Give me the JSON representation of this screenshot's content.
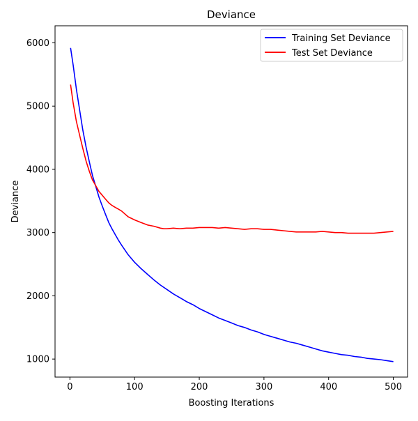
{
  "chart_data": {
    "type": "line",
    "title": "Deviance",
    "xlabel": "Boosting Iterations",
    "ylabel": "Deviance",
    "xlim": [
      -23,
      522
    ],
    "ylim": [
      715,
      6270
    ],
    "x_ticks": [
      0,
      100,
      200,
      300,
      400,
      500
    ],
    "y_ticks": [
      1000,
      2000,
      3000,
      4000,
      5000,
      6000
    ],
    "grid": false,
    "legend_position": "top-right",
    "series": [
      {
        "name": "Training Set Deviance",
        "color": "#0000ff",
        "x": [
          1,
          5,
          10,
          15,
          20,
          25,
          30,
          35,
          40,
          45,
          50,
          55,
          60,
          65,
          70,
          75,
          80,
          90,
          100,
          110,
          120,
          130,
          140,
          150,
          160,
          170,
          180,
          190,
          200,
          210,
          220,
          230,
          240,
          250,
          260,
          270,
          280,
          290,
          300,
          310,
          320,
          330,
          340,
          350,
          360,
          370,
          380,
          390,
          400,
          410,
          420,
          430,
          440,
          450,
          460,
          470,
          480,
          490,
          500
        ],
        "values": [
          5920,
          5650,
          5270,
          4940,
          4620,
          4350,
          4120,
          3900,
          3730,
          3560,
          3420,
          3290,
          3160,
          3060,
          2970,
          2880,
          2800,
          2650,
          2530,
          2430,
          2340,
          2250,
          2170,
          2100,
          2030,
          1970,
          1910,
          1860,
          1800,
          1750,
          1700,
          1650,
          1610,
          1570,
          1530,
          1500,
          1460,
          1430,
          1390,
          1360,
          1330,
          1300,
          1270,
          1250,
          1220,
          1190,
          1160,
          1130,
          1110,
          1090,
          1070,
          1060,
          1040,
          1030,
          1010,
          1000,
          990,
          975,
          960
        ]
      },
      {
        "name": "Test Set Deviance",
        "color": "#ff0000",
        "x": [
          1,
          5,
          10,
          15,
          20,
          25,
          30,
          35,
          40,
          45,
          50,
          55,
          60,
          65,
          70,
          75,
          80,
          90,
          100,
          110,
          120,
          130,
          140,
          145,
          150,
          160,
          170,
          180,
          190,
          200,
          210,
          220,
          230,
          240,
          250,
          260,
          270,
          280,
          290,
          300,
          310,
          320,
          330,
          340,
          350,
          360,
          370,
          380,
          390,
          400,
          410,
          420,
          430,
          440,
          450,
          460,
          470,
          480,
          490,
          500
        ],
        "values": [
          5340,
          5050,
          4760,
          4540,
          4330,
          4130,
          3970,
          3830,
          3740,
          3650,
          3590,
          3530,
          3470,
          3430,
          3400,
          3370,
          3340,
          3250,
          3200,
          3160,
          3120,
          3100,
          3070,
          3060,
          3060,
          3070,
          3060,
          3070,
          3070,
          3080,
          3080,
          3080,
          3070,
          3080,
          3070,
          3060,
          3050,
          3060,
          3060,
          3050,
          3050,
          3040,
          3030,
          3020,
          3010,
          3010,
          3010,
          3010,
          3020,
          3010,
          3000,
          3000,
          2990,
          2990,
          2990,
          2990,
          2990,
          3000,
          3010,
          3020
        ]
      }
    ]
  }
}
